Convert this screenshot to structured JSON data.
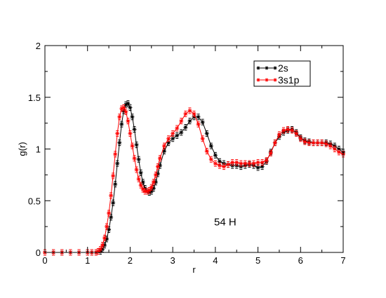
{
  "chart_data": {
    "type": "line",
    "title": "",
    "xlabel": "r",
    "ylabel": "g(r)",
    "xlim": [
      0,
      7
    ],
    "ylim": [
      0,
      2
    ],
    "xticks": [
      0,
      1,
      2,
      3,
      4,
      5,
      6,
      7
    ],
    "yticks": [
      0,
      0.5,
      1,
      1.5,
      2
    ],
    "ytick_labels": [
      "0",
      "0.5",
      "1",
      "1.5",
      "2"
    ],
    "grid": false,
    "legend_position": "top-right",
    "annotation": "54 H",
    "series": [
      {
        "name": "2s",
        "color": "#000000",
        "marker": "star-errorbar",
        "x": [
          0.0,
          0.2,
          0.4,
          0.6,
          0.8,
          1.0,
          1.1,
          1.2,
          1.3,
          1.35,
          1.4,
          1.45,
          1.5,
          1.55,
          1.6,
          1.65,
          1.7,
          1.75,
          1.8,
          1.85,
          1.9,
          1.95,
          2.0,
          2.05,
          2.1,
          2.15,
          2.2,
          2.25,
          2.3,
          2.35,
          2.4,
          2.45,
          2.5,
          2.55,
          2.6,
          2.65,
          2.7,
          2.8,
          2.9,
          3.0,
          3.1,
          3.2,
          3.3,
          3.4,
          3.5,
          3.6,
          3.7,
          3.8,
          3.9,
          4.0,
          4.1,
          4.2,
          4.3,
          4.4,
          4.5,
          4.6,
          4.7,
          4.8,
          4.9,
          5.0,
          5.1,
          5.2,
          5.3,
          5.4,
          5.5,
          5.6,
          5.7,
          5.8,
          5.9,
          6.0,
          6.1,
          6.2,
          6.3,
          6.4,
          6.5,
          6.6,
          6.7,
          6.8,
          6.9,
          7.0
        ],
        "y": [
          0.0,
          0.0,
          0.0,
          0.0,
          0.0,
          0.0,
          0.0,
          0.0,
          0.01,
          0.03,
          0.07,
          0.13,
          0.22,
          0.34,
          0.48,
          0.66,
          0.86,
          1.06,
          1.24,
          1.37,
          1.43,
          1.44,
          1.4,
          1.31,
          1.19,
          1.04,
          0.9,
          0.77,
          0.68,
          0.62,
          0.59,
          0.58,
          0.59,
          0.62,
          0.68,
          0.76,
          0.84,
          0.98,
          1.06,
          1.1,
          1.13,
          1.16,
          1.21,
          1.27,
          1.31,
          1.31,
          1.26,
          1.15,
          1.03,
          0.94,
          0.88,
          0.86,
          0.85,
          0.84,
          0.84,
          0.83,
          0.84,
          0.85,
          0.84,
          0.82,
          0.83,
          0.88,
          0.97,
          1.06,
          1.12,
          1.16,
          1.18,
          1.19,
          1.16,
          1.11,
          1.08,
          1.07,
          1.06,
          1.06,
          1.06,
          1.06,
          1.05,
          1.03,
          1.0,
          0.97
        ]
      },
      {
        "name": "3s1p",
        "color": "#ff0000",
        "marker": "star-errorbar",
        "x": [
          0.0,
          0.2,
          0.4,
          0.6,
          0.8,
          1.0,
          1.1,
          1.2,
          1.25,
          1.3,
          1.35,
          1.4,
          1.45,
          1.5,
          1.55,
          1.6,
          1.65,
          1.7,
          1.75,
          1.8,
          1.85,
          1.9,
          1.95,
          2.0,
          2.05,
          2.1,
          2.15,
          2.2,
          2.25,
          2.3,
          2.35,
          2.4,
          2.45,
          2.5,
          2.55,
          2.6,
          2.65,
          2.7,
          2.8,
          2.9,
          3.0,
          3.1,
          3.2,
          3.3,
          3.4,
          3.5,
          3.6,
          3.7,
          3.8,
          3.9,
          4.0,
          4.1,
          4.2,
          4.3,
          4.4,
          4.5,
          4.6,
          4.7,
          4.8,
          4.9,
          5.0,
          5.1,
          5.2,
          5.3,
          5.4,
          5.5,
          5.6,
          5.7,
          5.8,
          5.9,
          6.0,
          6.1,
          6.2,
          6.3,
          6.4,
          6.5,
          6.6,
          6.7,
          6.8,
          6.9,
          7.0
        ],
        "y": [
          0.0,
          0.0,
          0.0,
          0.0,
          0.0,
          0.0,
          0.0,
          0.0,
          0.01,
          0.03,
          0.07,
          0.14,
          0.25,
          0.38,
          0.55,
          0.74,
          0.95,
          1.15,
          1.31,
          1.39,
          1.4,
          1.36,
          1.27,
          1.15,
          1.03,
          0.91,
          0.8,
          0.71,
          0.65,
          0.61,
          0.59,
          0.59,
          0.6,
          0.63,
          0.68,
          0.75,
          0.83,
          0.91,
          1.03,
          1.1,
          1.15,
          1.2,
          1.27,
          1.34,
          1.37,
          1.34,
          1.24,
          1.1,
          0.98,
          0.9,
          0.86,
          0.84,
          0.83,
          0.85,
          0.87,
          0.87,
          0.86,
          0.86,
          0.86,
          0.86,
          0.87,
          0.87,
          0.89,
          0.96,
          1.06,
          1.14,
          1.18,
          1.19,
          1.18,
          1.15,
          1.1,
          1.07,
          1.06,
          1.06,
          1.06,
          1.06,
          1.05,
          1.03,
          1.0,
          0.97,
          0.95
        ]
      }
    ]
  }
}
